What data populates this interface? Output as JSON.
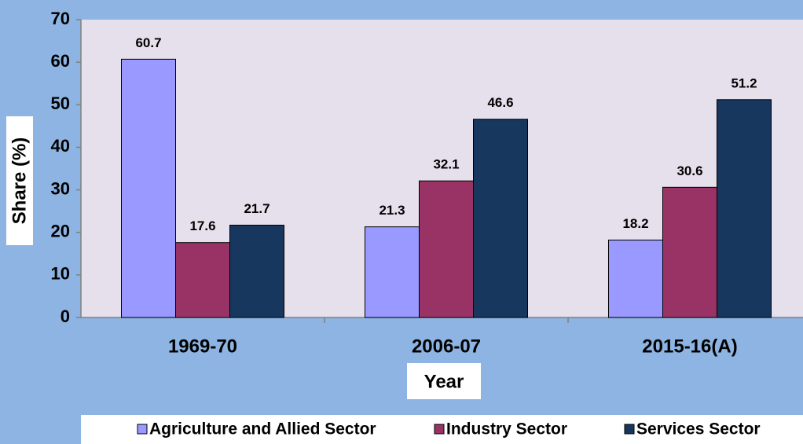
{
  "chart_data": {
    "type": "bar",
    "categories": [
      "1969-70",
      "2006-07",
      "2015-16(A)"
    ],
    "series": [
      {
        "name": "Agriculture and Allied Sector",
        "color": "#9999ff",
        "values": [
          60.7,
          21.3,
          18.2
        ]
      },
      {
        "name": "Industry Sector",
        "color": "#993366",
        "values": [
          17.6,
          32.1,
          30.6
        ]
      },
      {
        "name": "Services Sector",
        "color": "#17375e",
        "values": [
          21.7,
          46.6,
          51.2
        ]
      }
    ],
    "xlabel": "Year",
    "ylabel": "Share (%)",
    "ylim": [
      0,
      70
    ],
    "yticks": [
      0,
      10,
      20,
      30,
      40,
      50,
      60,
      70
    ],
    "legend": "bottom"
  }
}
